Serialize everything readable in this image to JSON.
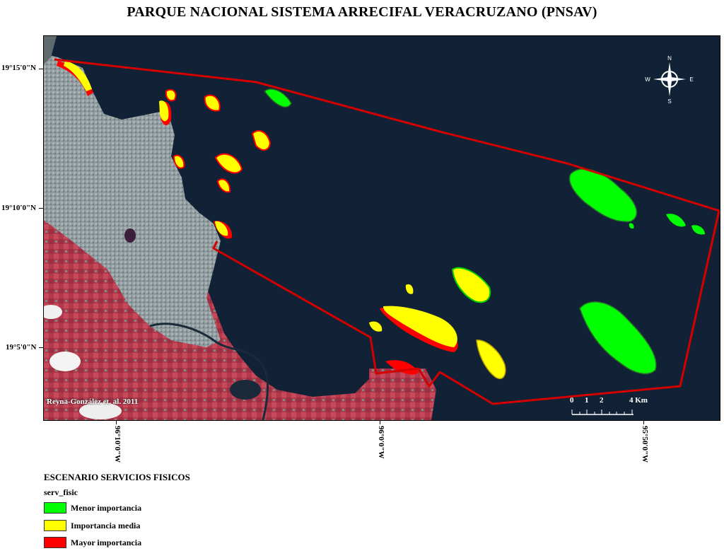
{
  "title": "PARQUE NACIONAL SISTEMA ARRECIFAL VERACRUZANO (PNSAV)",
  "latitude_labels": [
    "19°15'0\"N",
    "19°10'0\"N",
    "19°5'0\"N"
  ],
  "longitude_labels": [
    "96°10'0\"W",
    "96°0'0\"W",
    "95°50'0\"W"
  ],
  "credit": "Reyna-González et. al. 2011",
  "compass": {
    "n": "N",
    "s": "S",
    "e": "E",
    "w": "W"
  },
  "scale_bar": {
    "ticks": [
      "0",
      "1",
      "2",
      "4 Km"
    ]
  },
  "legend": {
    "title": "ESCENARIO SERVICIOS FISICOS",
    "field": "serv_fisic",
    "items": [
      {
        "label": "Menor importancia",
        "color": "#00ff00"
      },
      {
        "label": "Importancia media",
        "color": "#ffff00"
      },
      {
        "label": "Mayor importancia",
        "color": "#ff0000"
      }
    ]
  },
  "colors": {
    "sea": "#112033",
    "land_red": "#b83a4e",
    "urban": "#8e9a9c",
    "boundary": "#d40000"
  }
}
